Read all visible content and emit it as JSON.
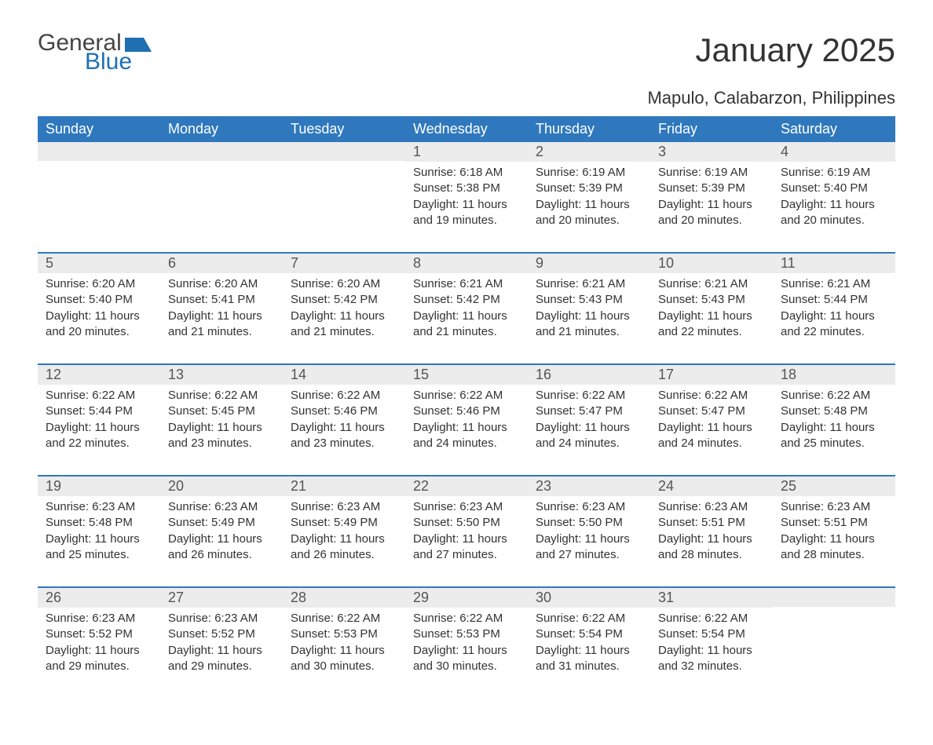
{
  "brand": {
    "text_general": "General",
    "text_blue": "Blue",
    "flag_color": "#1f6fb2"
  },
  "title": "January 2025",
  "location": "Mapulo, Calabarzon, Philippines",
  "colors": {
    "header_bg": "#2f78bd",
    "header_text": "#ffffff",
    "daynum_bg": "#ececec",
    "row_border": "#2f78bd",
    "body_text": "#333333"
  },
  "day_headers": [
    "Sunday",
    "Monday",
    "Tuesday",
    "Wednesday",
    "Thursday",
    "Friday",
    "Saturday"
  ],
  "weeks": [
    [
      {
        "day": "",
        "sunrise": "",
        "sunset": "",
        "daylight1": "",
        "daylight2": ""
      },
      {
        "day": "",
        "sunrise": "",
        "sunset": "",
        "daylight1": "",
        "daylight2": ""
      },
      {
        "day": "",
        "sunrise": "",
        "sunset": "",
        "daylight1": "",
        "daylight2": ""
      },
      {
        "day": "1",
        "sunrise": "Sunrise: 6:18 AM",
        "sunset": "Sunset: 5:38 PM",
        "daylight1": "Daylight: 11 hours",
        "daylight2": "and 19 minutes."
      },
      {
        "day": "2",
        "sunrise": "Sunrise: 6:19 AM",
        "sunset": "Sunset: 5:39 PM",
        "daylight1": "Daylight: 11 hours",
        "daylight2": "and 20 minutes."
      },
      {
        "day": "3",
        "sunrise": "Sunrise: 6:19 AM",
        "sunset": "Sunset: 5:39 PM",
        "daylight1": "Daylight: 11 hours",
        "daylight2": "and 20 minutes."
      },
      {
        "day": "4",
        "sunrise": "Sunrise: 6:19 AM",
        "sunset": "Sunset: 5:40 PM",
        "daylight1": "Daylight: 11 hours",
        "daylight2": "and 20 minutes."
      }
    ],
    [
      {
        "day": "5",
        "sunrise": "Sunrise: 6:20 AM",
        "sunset": "Sunset: 5:40 PM",
        "daylight1": "Daylight: 11 hours",
        "daylight2": "and 20 minutes."
      },
      {
        "day": "6",
        "sunrise": "Sunrise: 6:20 AM",
        "sunset": "Sunset: 5:41 PM",
        "daylight1": "Daylight: 11 hours",
        "daylight2": "and 21 minutes."
      },
      {
        "day": "7",
        "sunrise": "Sunrise: 6:20 AM",
        "sunset": "Sunset: 5:42 PM",
        "daylight1": "Daylight: 11 hours",
        "daylight2": "and 21 minutes."
      },
      {
        "day": "8",
        "sunrise": "Sunrise: 6:21 AM",
        "sunset": "Sunset: 5:42 PM",
        "daylight1": "Daylight: 11 hours",
        "daylight2": "and 21 minutes."
      },
      {
        "day": "9",
        "sunrise": "Sunrise: 6:21 AM",
        "sunset": "Sunset: 5:43 PM",
        "daylight1": "Daylight: 11 hours",
        "daylight2": "and 21 minutes."
      },
      {
        "day": "10",
        "sunrise": "Sunrise: 6:21 AM",
        "sunset": "Sunset: 5:43 PM",
        "daylight1": "Daylight: 11 hours",
        "daylight2": "and 22 minutes."
      },
      {
        "day": "11",
        "sunrise": "Sunrise: 6:21 AM",
        "sunset": "Sunset: 5:44 PM",
        "daylight1": "Daylight: 11 hours",
        "daylight2": "and 22 minutes."
      }
    ],
    [
      {
        "day": "12",
        "sunrise": "Sunrise: 6:22 AM",
        "sunset": "Sunset: 5:44 PM",
        "daylight1": "Daylight: 11 hours",
        "daylight2": "and 22 minutes."
      },
      {
        "day": "13",
        "sunrise": "Sunrise: 6:22 AM",
        "sunset": "Sunset: 5:45 PM",
        "daylight1": "Daylight: 11 hours",
        "daylight2": "and 23 minutes."
      },
      {
        "day": "14",
        "sunrise": "Sunrise: 6:22 AM",
        "sunset": "Sunset: 5:46 PM",
        "daylight1": "Daylight: 11 hours",
        "daylight2": "and 23 minutes."
      },
      {
        "day": "15",
        "sunrise": "Sunrise: 6:22 AM",
        "sunset": "Sunset: 5:46 PM",
        "daylight1": "Daylight: 11 hours",
        "daylight2": "and 24 minutes."
      },
      {
        "day": "16",
        "sunrise": "Sunrise: 6:22 AM",
        "sunset": "Sunset: 5:47 PM",
        "daylight1": "Daylight: 11 hours",
        "daylight2": "and 24 minutes."
      },
      {
        "day": "17",
        "sunrise": "Sunrise: 6:22 AM",
        "sunset": "Sunset: 5:47 PM",
        "daylight1": "Daylight: 11 hours",
        "daylight2": "and 24 minutes."
      },
      {
        "day": "18",
        "sunrise": "Sunrise: 6:22 AM",
        "sunset": "Sunset: 5:48 PM",
        "daylight1": "Daylight: 11 hours",
        "daylight2": "and 25 minutes."
      }
    ],
    [
      {
        "day": "19",
        "sunrise": "Sunrise: 6:23 AM",
        "sunset": "Sunset: 5:48 PM",
        "daylight1": "Daylight: 11 hours",
        "daylight2": "and 25 minutes."
      },
      {
        "day": "20",
        "sunrise": "Sunrise: 6:23 AM",
        "sunset": "Sunset: 5:49 PM",
        "daylight1": "Daylight: 11 hours",
        "daylight2": "and 26 minutes."
      },
      {
        "day": "21",
        "sunrise": "Sunrise: 6:23 AM",
        "sunset": "Sunset: 5:49 PM",
        "daylight1": "Daylight: 11 hours",
        "daylight2": "and 26 minutes."
      },
      {
        "day": "22",
        "sunrise": "Sunrise: 6:23 AM",
        "sunset": "Sunset: 5:50 PM",
        "daylight1": "Daylight: 11 hours",
        "daylight2": "and 27 minutes."
      },
      {
        "day": "23",
        "sunrise": "Sunrise: 6:23 AM",
        "sunset": "Sunset: 5:50 PM",
        "daylight1": "Daylight: 11 hours",
        "daylight2": "and 27 minutes."
      },
      {
        "day": "24",
        "sunrise": "Sunrise: 6:23 AM",
        "sunset": "Sunset: 5:51 PM",
        "daylight1": "Daylight: 11 hours",
        "daylight2": "and 28 minutes."
      },
      {
        "day": "25",
        "sunrise": "Sunrise: 6:23 AM",
        "sunset": "Sunset: 5:51 PM",
        "daylight1": "Daylight: 11 hours",
        "daylight2": "and 28 minutes."
      }
    ],
    [
      {
        "day": "26",
        "sunrise": "Sunrise: 6:23 AM",
        "sunset": "Sunset: 5:52 PM",
        "daylight1": "Daylight: 11 hours",
        "daylight2": "and 29 minutes."
      },
      {
        "day": "27",
        "sunrise": "Sunrise: 6:23 AM",
        "sunset": "Sunset: 5:52 PM",
        "daylight1": "Daylight: 11 hours",
        "daylight2": "and 29 minutes."
      },
      {
        "day": "28",
        "sunrise": "Sunrise: 6:22 AM",
        "sunset": "Sunset: 5:53 PM",
        "daylight1": "Daylight: 11 hours",
        "daylight2": "and 30 minutes."
      },
      {
        "day": "29",
        "sunrise": "Sunrise: 6:22 AM",
        "sunset": "Sunset: 5:53 PM",
        "daylight1": "Daylight: 11 hours",
        "daylight2": "and 30 minutes."
      },
      {
        "day": "30",
        "sunrise": "Sunrise: 6:22 AM",
        "sunset": "Sunset: 5:54 PM",
        "daylight1": "Daylight: 11 hours",
        "daylight2": "and 31 minutes."
      },
      {
        "day": "31",
        "sunrise": "Sunrise: 6:22 AM",
        "sunset": "Sunset: 5:54 PM",
        "daylight1": "Daylight: 11 hours",
        "daylight2": "and 32 minutes."
      },
      {
        "day": "",
        "sunrise": "",
        "sunset": "",
        "daylight1": "",
        "daylight2": ""
      }
    ]
  ]
}
